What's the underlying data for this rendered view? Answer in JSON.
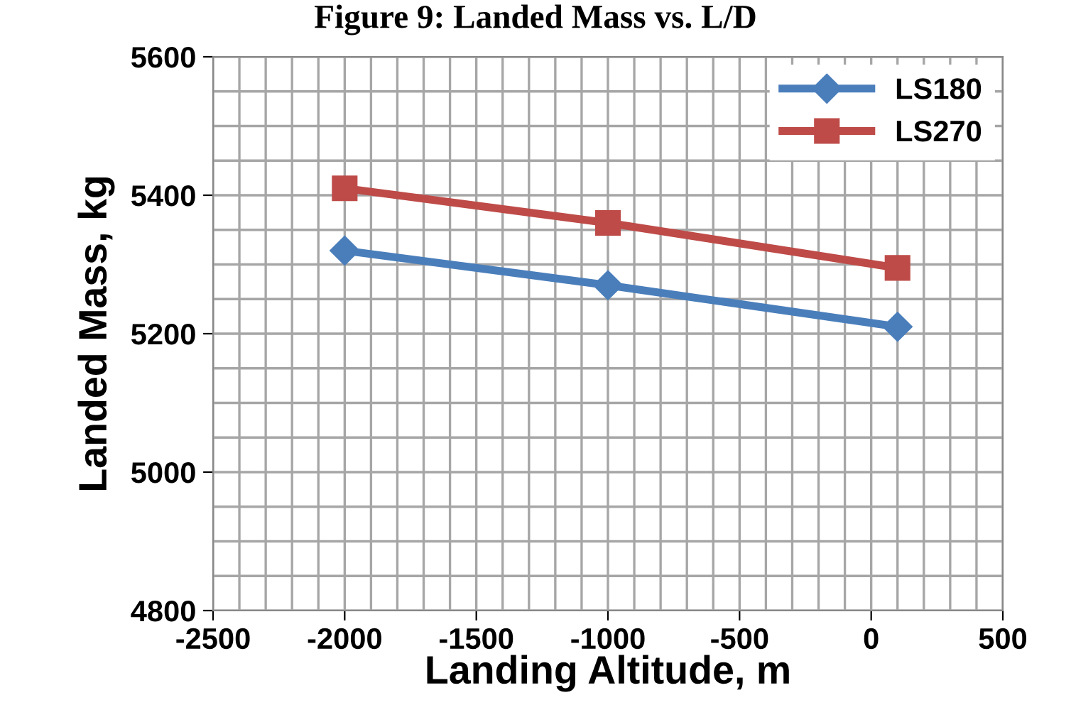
{
  "chart_data": {
    "type": "line",
    "title": "Figure 9: Landed Mass vs. L/D",
    "xlabel": "Landing Altitude, m",
    "ylabel": "Landed Mass, kg",
    "x": [
      -2000,
      -1000,
      100
    ],
    "series": [
      {
        "name": "LS180",
        "color": "#4a7ebb",
        "marker": "diamond",
        "values": [
          5320,
          5270,
          5210
        ]
      },
      {
        "name": "LS270",
        "color": "#be4b48",
        "marker": "square",
        "values": [
          5410,
          5360,
          5295
        ]
      }
    ],
    "xlim": [
      -2500,
      500
    ],
    "xticks": [
      -2500,
      -2000,
      -1500,
      -1000,
      -500,
      0,
      500
    ],
    "ylim": [
      4800,
      5600
    ],
    "yticks": [
      4800,
      5000,
      5200,
      5400,
      5600
    ],
    "grid": true,
    "legend": "top right",
    "line_style": "solid"
  }
}
